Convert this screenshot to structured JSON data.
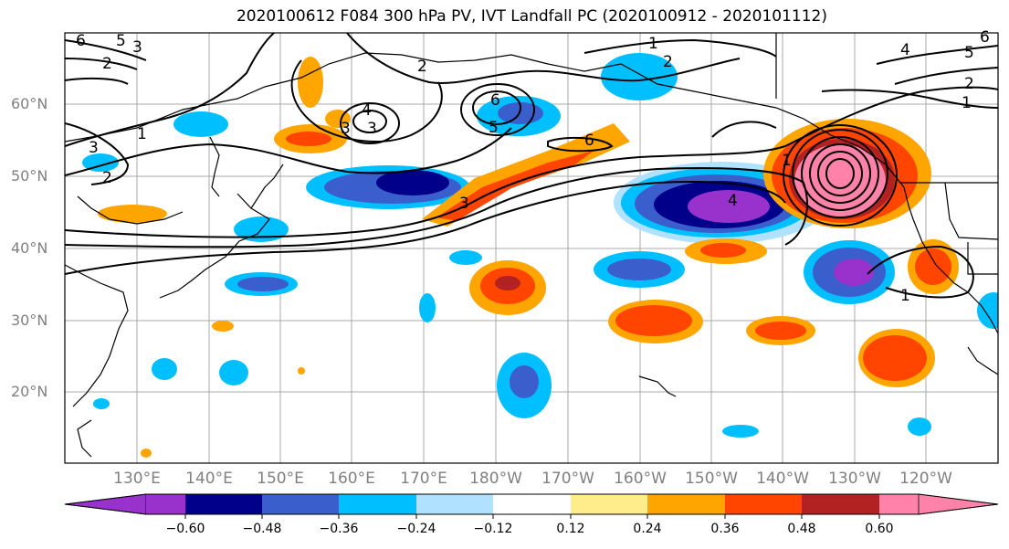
{
  "title": "2020100612 F084 300 hPa PV, IVT Landfall PC (2020100912 - 2020101112)",
  "lat_labels": [
    "60°N",
    "50°N",
    "40°N",
    "30°N",
    "20°N"
  ],
  "lon_labels": [
    "130°E",
    "140°E",
    "150°E",
    "160°E",
    "170°E",
    "180°W",
    "170°W",
    "160°W",
    "150°W",
    "140°W",
    "130°W",
    "120°W"
  ],
  "colorbar": {
    "colors": [
      "#9932cc",
      "#00008b",
      "#3a5fcd",
      "#00bfff",
      "#b0e2ff",
      "#ffffff",
      "#ffec8b",
      "#ffa500",
      "#ff4500",
      "#b22222",
      "#ff82ab"
    ],
    "tick_labels": [
      "−0.60",
      "−0.48",
      "−0.36",
      "−0.24",
      "−0.12",
      "0.12",
      "0.24",
      "0.36",
      "0.48",
      "0.60"
    ]
  },
  "contour_labels": [
    "6",
    "5",
    "3",
    "2",
    "1",
    "3",
    "2",
    "2",
    "1",
    "2",
    "4",
    "3",
    "3",
    "6",
    "5",
    "6",
    "1",
    "4",
    "3",
    "5",
    "2",
    "1",
    "4",
    "6",
    "1"
  ]
}
